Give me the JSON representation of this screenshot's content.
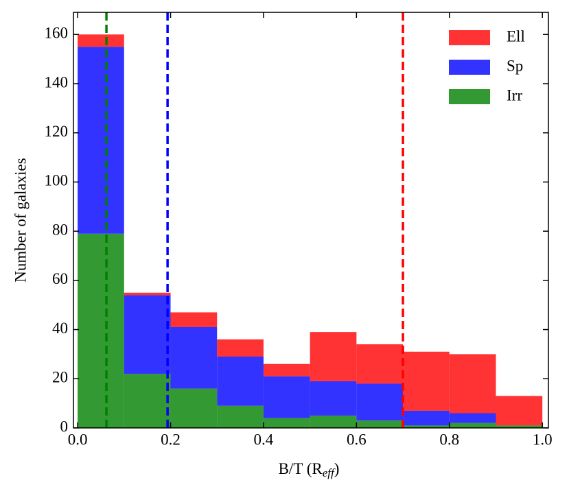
{
  "chart_data": {
    "type": "stacked_histogram",
    "xlabel": [
      "B/T (R",
      "eff",
      ")"
    ],
    "ylabel": "Number of galaxies",
    "bins": [
      0,
      0.1,
      0.2,
      0.3,
      0.4,
      0.5,
      0.6,
      0.7,
      0.8,
      0.9,
      1.0
    ],
    "series": [
      {
        "name": "Ell",
        "color": "#ff0000",
        "values": [
          5,
          1,
          6,
          7,
          5,
          20,
          16,
          24,
          24,
          12
        ]
      },
      {
        "name": "Sp",
        "color": "#0000ff",
        "values": [
          76,
          32,
          25,
          20,
          17,
          14,
          15,
          6,
          4,
          0
        ]
      },
      {
        "name": "Irr",
        "color": "#008000",
        "values": [
          79,
          22,
          16,
          9,
          4,
          5,
          3,
          1,
          2,
          1
        ]
      }
    ],
    "vlines": [
      {
        "x": 0.062,
        "color": "#008000"
      },
      {
        "x": 0.1935,
        "color": "#0000ff"
      },
      {
        "x": 0.7,
        "color": "#ff0000"
      }
    ],
    "xlim": [
      -0.009,
      1.013
    ],
    "ylim": [
      0,
      169
    ],
    "xticks": [
      {
        "value": 0,
        "label": "0.0"
      },
      0.2,
      0.4,
      0.6,
      0.8,
      {
        "value": 1,
        "label": "1.0"
      }
    ],
    "yticks": [
      0,
      20,
      40,
      60,
      80,
      100,
      120,
      140,
      160
    ],
    "legend": "upper right"
  }
}
